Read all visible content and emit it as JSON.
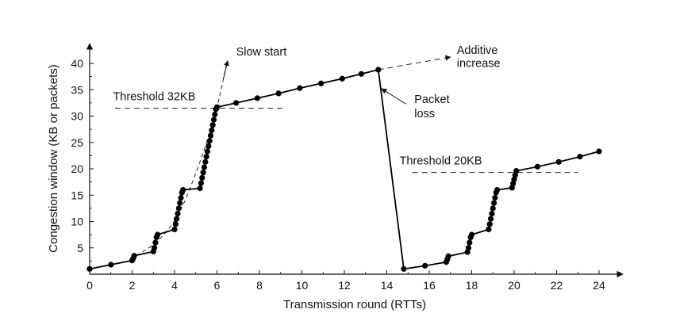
{
  "chart_data": {
    "type": "line",
    "title": "",
    "xlabel": "Transmission round (RTTs)",
    "ylabel": "Congestion window (KB or packets)",
    "xlim": [
      0,
      25
    ],
    "ylim": [
      0,
      42
    ],
    "x_ticks": [
      0,
      2,
      4,
      6,
      8,
      10,
      12,
      14,
      16,
      18,
      20,
      22,
      24
    ],
    "y_ticks": [
      5,
      10,
      15,
      20,
      25,
      30,
      35,
      40
    ],
    "grid": false,
    "legend": "none",
    "series": [
      {
        "name": "",
        "style": "solid-with-markers",
        "points": [
          [
            0,
            1
          ],
          [
            1,
            1.8
          ],
          [
            2,
            2.6
          ],
          [
            2.05,
            3
          ],
          [
            2.1,
            3.5
          ],
          [
            3,
            4.3
          ],
          [
            3.05,
            5
          ],
          [
            3.1,
            6
          ],
          [
            3.15,
            7
          ],
          [
            3.2,
            7.5
          ],
          [
            4,
            8.5
          ],
          [
            4.05,
            9.5
          ],
          [
            4.1,
            10.5
          ],
          [
            4.15,
            11.5
          ],
          [
            4.2,
            12.5
          ],
          [
            4.25,
            13.5
          ],
          [
            4.3,
            14.5
          ],
          [
            4.35,
            15.5
          ],
          [
            4.4,
            16
          ],
          [
            5.2,
            16.3
          ],
          [
            5.25,
            17.3
          ],
          [
            5.3,
            18.3
          ],
          [
            5.35,
            19.3
          ],
          [
            5.4,
            20.3
          ],
          [
            5.45,
            21.3
          ],
          [
            5.5,
            22.3
          ],
          [
            5.55,
            23.3
          ],
          [
            5.6,
            24.3
          ],
          [
            5.65,
            25.3
          ],
          [
            5.7,
            26.3
          ],
          [
            5.75,
            27.3
          ],
          [
            5.8,
            28.3
          ],
          [
            5.85,
            29.3
          ],
          [
            5.9,
            30.3
          ],
          [
            5.95,
            31.3
          ],
          [
            6,
            31.7
          ],
          [
            6.9,
            32.5
          ],
          [
            7.9,
            33.4
          ],
          [
            8.9,
            34.3
          ],
          [
            9.9,
            35.3
          ],
          [
            10.9,
            36.2
          ],
          [
            11.9,
            37.1
          ],
          [
            12.8,
            38
          ],
          [
            13.6,
            38.8
          ],
          [
            14.8,
            1
          ],
          [
            15.8,
            1.6
          ],
          [
            16.8,
            2.3
          ],
          [
            16.85,
            2.8
          ],
          [
            16.9,
            3.4
          ],
          [
            17.8,
            4.2
          ],
          [
            17.85,
            5
          ],
          [
            17.9,
            6
          ],
          [
            17.95,
            7
          ],
          [
            18,
            7.5
          ],
          [
            18.8,
            8.5
          ],
          [
            18.85,
            9.5
          ],
          [
            18.9,
            10.5
          ],
          [
            18.95,
            11.5
          ],
          [
            19,
            12.5
          ],
          [
            19.05,
            13.5
          ],
          [
            19.1,
            14.5
          ],
          [
            19.15,
            15.5
          ],
          [
            19.2,
            16
          ],
          [
            19.9,
            16.4
          ],
          [
            19.95,
            17.2
          ],
          [
            20,
            18
          ],
          [
            20.05,
            18.8
          ],
          [
            20.1,
            19.6
          ],
          [
            21.1,
            20.4
          ],
          [
            22.1,
            21.3
          ],
          [
            23.1,
            22.3
          ],
          [
            24,
            23.3
          ]
        ]
      }
    ],
    "guides": [
      {
        "style": "dashed",
        "points": [
          [
            1.2,
            31.5
          ],
          [
            9.2,
            31.5
          ]
        ]
      },
      {
        "style": "dashed",
        "points": [
          [
            15.2,
            19.3
          ],
          [
            23,
            19.3
          ]
        ]
      },
      {
        "style": "dashed-curve",
        "points": [
          [
            2.2,
            3.5
          ],
          [
            3.2,
            6
          ],
          [
            4.2,
            11
          ],
          [
            5,
            19
          ],
          [
            5.6,
            26
          ],
          [
            6,
            31.5
          ],
          [
            6.3,
            37
          ],
          [
            6.45,
            40
          ]
        ]
      },
      {
        "style": "dashed-arrow",
        "points": [
          [
            13.6,
            38.8
          ],
          [
            17,
            41.2
          ]
        ]
      }
    ],
    "annotations": [
      {
        "text": "Slow start",
        "x": 6.9,
        "y": 41.5
      },
      {
        "text": "Additive",
        "x": 17.3,
        "y": 41.8
      },
      {
        "text": "increase",
        "x": 17.3,
        "y": 39.3
      },
      {
        "text": "Threshold 32KB",
        "x": 1.1,
        "y": 33
      },
      {
        "text": "Packet",
        "x": 15.3,
        "y": 32.5
      },
      {
        "text": "loss",
        "x": 15.3,
        "y": 29.8
      },
      {
        "text": "Threshold 20KB",
        "x": 14.6,
        "y": 20.8
      }
    ],
    "pointers": [
      {
        "name": "slow-start-pointer",
        "from": [
          6.3,
          37
        ],
        "to": [
          6.5,
          40.5
        ]
      },
      {
        "name": "packet-loss-pointer",
        "from": [
          14.9,
          32.3
        ],
        "to": [
          13.75,
          35.2
        ]
      }
    ]
  }
}
